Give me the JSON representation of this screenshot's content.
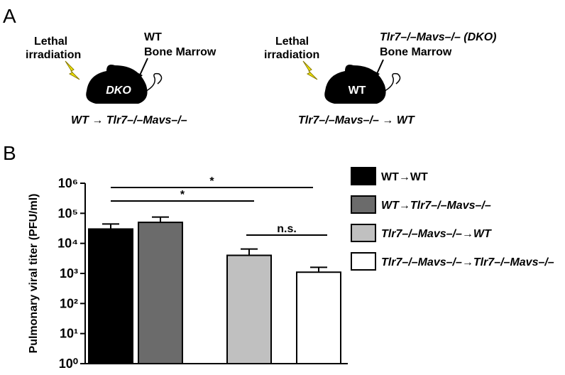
{
  "panel_labels": [
    "A",
    "B"
  ],
  "panel_a": {
    "left": {
      "irradiation": [
        "Lethal",
        "irradiation"
      ],
      "marrow": [
        "WT",
        "Bone Marrow"
      ],
      "mouse": "DKO",
      "caption": "WT → Tlr7–/–Mavs–/–"
    },
    "right": {
      "irradiation": [
        "Lethal",
        "irradiation"
      ],
      "marrow": [
        "Tlr7–/–Mavs–/– (DKO)",
        "Bone Marrow"
      ],
      "mouse": "WT",
      "caption": "Tlr7–/–Mavs–/– → WT"
    }
  },
  "chart_data": {
    "type": "bar",
    "y_label": "Pulmonary viral titer (PFU/ml)",
    "categories": [
      "WT→WT",
      "WT→Tlr7–/–Mavs–/–",
      "Tlr7–/–Mavs–/–→WT",
      "Tlr7–/–Mavs–/–→Tlr7–/–Mavs–/–"
    ],
    "values": [
      30000,
      50000,
      4000,
      1100
    ],
    "errors": [
      14000,
      25000,
      2500,
      500
    ],
    "colors": [
      "#000000",
      "#6b6b6b",
      "#c0c0c0",
      "#ffffff"
    ],
    "log_scale": true,
    "ylim": [
      1,
      1000000
    ],
    "yticks": [
      {
        "value": 1,
        "label": "10⁰"
      },
      {
        "value": 10,
        "label": "10¹"
      },
      {
        "value": 100,
        "label": "10²"
      },
      {
        "value": 1000,
        "label": "10³"
      },
      {
        "value": 10000,
        "label": "10⁴"
      },
      {
        "value": 100000,
        "label": "10⁵"
      },
      {
        "value": 1000000,
        "label": "10⁶"
      }
    ],
    "annotations": [
      "*",
      "*",
      "n.s."
    ],
    "legend": "right"
  }
}
